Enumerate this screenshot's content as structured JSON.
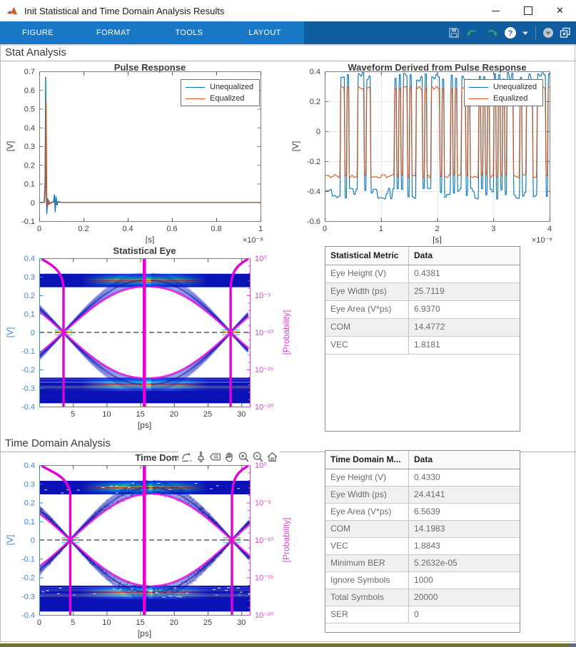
{
  "window": {
    "title": "Init Statistical and Time Domain Analysis Results"
  },
  "titlebar_controls": {
    "minimize": "minimize",
    "maximize": "maximize",
    "close": "✕"
  },
  "ribbon": {
    "tabs": [
      {
        "label": "FIGURE"
      },
      {
        "label": "FORMAT"
      },
      {
        "label": "TOOLS"
      },
      {
        "label": "LAYOUT"
      }
    ],
    "quick_access_icons": [
      "save",
      "undo",
      "redo",
      "help",
      "help-dropdown",
      "toolstrip-options",
      "dock-figure"
    ]
  },
  "sections": {
    "stat_title": "Stat Analysis",
    "time_domain_title": "Time Domain Analysis"
  },
  "axes_toolbar_icons": [
    "export",
    "brush",
    "datatips",
    "pan",
    "zoom-in",
    "zoom-out",
    "restore-view"
  ],
  "tables": {
    "stat": {
      "headers": [
        "Statistical Metric",
        "Data"
      ],
      "rows": [
        [
          "Eye Height (V)",
          "0.4381"
        ],
        [
          "Eye Width (ps)",
          "25.7119"
        ],
        [
          "Eye Area (V*ps)",
          "6.9370"
        ],
        [
          "COM",
          "14.4772"
        ],
        [
          "VEC",
          "1.8181"
        ]
      ]
    },
    "time_domain": {
      "headers": [
        "Time Domain M...",
        "Data"
      ],
      "rows": [
        [
          "Eye Height (V)",
          "0.4330"
        ],
        [
          "Eye Width (ps)",
          "24.4141"
        ],
        [
          "Eye Area (V*ps)",
          "6.5639"
        ],
        [
          "COM",
          "14.1983"
        ],
        [
          "VEC",
          "1.8843"
        ],
        [
          "Minimum BER",
          "5.2632e-05"
        ],
        [
          "Ignore Symbols",
          "1000"
        ],
        [
          "Total Symbols",
          "20000"
        ],
        [
          "SER",
          "0"
        ]
      ]
    }
  },
  "chart_data": [
    {
      "id": "pulse",
      "type": "line",
      "title": "Pulse Response",
      "xlabel": "[s]",
      "ylabel": "[V]",
      "x_exponent_label": "×10⁻⁸",
      "xlim": [
        0,
        1
      ],
      "ylim": [
        -0.1,
        0.7
      ],
      "xticks": [
        0,
        0.2,
        0.4,
        0.6,
        0.8,
        1
      ],
      "yticks": [
        -0.1,
        0,
        0.1,
        0.2,
        0.3,
        0.4,
        0.5,
        0.6,
        0.7
      ],
      "legend": [
        "Unequalized",
        "Equalized"
      ],
      "series": [
        {
          "name": "Unequalized",
          "color": "#0072BD",
          "peak_v": 0.67,
          "peak_t": 0.029,
          "points": [
            [
              0,
              0
            ],
            [
              0.022,
              0
            ],
            [
              0.026,
              0.1
            ],
            [
              0.029,
              0.67
            ],
            [
              0.032,
              0.05
            ],
            [
              0.034,
              -0.06
            ],
            [
              0.038,
              0.02
            ],
            [
              0.045,
              -0.01
            ],
            [
              0.055,
              0
            ],
            [
              0.065,
              0.005
            ],
            [
              0.069,
              0.042
            ],
            [
              0.072,
              -0.05
            ],
            [
              0.076,
              0.03
            ],
            [
              0.08,
              -0.015
            ],
            [
              0.085,
              0.005
            ],
            [
              0.1,
              0
            ],
            [
              1,
              0
            ]
          ]
        },
        {
          "name": "Equalized",
          "color": "#D95319",
          "peak_v": 0.54,
          "peak_t": 0.031,
          "points": [
            [
              0,
              0
            ],
            [
              0.024,
              0
            ],
            [
              0.028,
              0.08
            ],
            [
              0.031,
              0.54
            ],
            [
              0.034,
              0.04
            ],
            [
              0.037,
              -0.025
            ],
            [
              0.042,
              0.01
            ],
            [
              0.05,
              -0.005
            ],
            [
              0.06,
              0
            ],
            [
              1,
              0
            ]
          ]
        }
      ]
    },
    {
      "id": "waveform",
      "type": "line",
      "title": "Waveform Derived from Pulse Response",
      "xlabel": "[s]",
      "ylabel": "[V]",
      "x_exponent_label": "×10⁻⁹",
      "xlim": [
        0,
        4
      ],
      "ylim": [
        -0.6,
        0.4
      ],
      "xticks": [
        0,
        1,
        2,
        3,
        4
      ],
      "yticks": [
        -0.6,
        -0.4,
        -0.2,
        0,
        0.2,
        0.4
      ],
      "grid": true,
      "legend": [
        "Unequalized",
        "Equalized"
      ],
      "generator": {
        "kind": "pseudo-random-NRZ",
        "note": "dense random bit waveform; exact bit sequence not resolvable from screenshot",
        "seed": 97,
        "n_bits": 104,
        "series": [
          {
            "name": "Unequalized",
            "color": "#0072BD",
            "high": 0.365,
            "low": -0.415,
            "jitter": 0.18
          },
          {
            "name": "Equalized",
            "color": "#D95319",
            "high": 0.29,
            "low": -0.3,
            "jitter": 0.07
          }
        ]
      }
    },
    {
      "id": "stat_eye",
      "type": "heatmap-eye",
      "title": "Statistical Eye",
      "xlabel": "[ps]",
      "ylabel_left": "[V]",
      "ylabel_right": "[Probability]",
      "xlim": [
        0,
        31.25
      ],
      "ylim": [
        -0.4,
        0.4
      ],
      "xticks": [
        5,
        10,
        15,
        20,
        25,
        30
      ],
      "yticks_left": [
        -0.4,
        -0.3,
        -0.2,
        -0.1,
        0,
        0.1,
        0.2,
        0.3,
        0.4
      ],
      "yticks_right": [
        "10⁰",
        "10⁻⁵",
        "10⁻¹⁰",
        "10⁻¹⁵",
        "10⁻²⁰"
      ],
      "signal_level_v": 0.28,
      "band_halfwidth_v": 0.034,
      "contour_level_v": 0.245,
      "crossings_ps": [
        3.6,
        28.4
      ],
      "sampling_ps": 15.6,
      "zero_line_dashed": true,
      "noise_scatter": false,
      "colors": {
        "density": "#0a12b6",
        "contour": "#ff14e6",
        "bathtub": "#e400d6",
        "left_axis": "#3c86d2",
        "right_axis": "#df3fd3"
      }
    },
    {
      "id": "td_eye",
      "type": "heatmap-eye",
      "title": "Time Dom",
      "xlabel": "[ps]",
      "ylabel_left": "[V]",
      "ylabel_right": "[Probability]",
      "xlim": [
        0,
        31.25
      ],
      "ylim": [
        -0.4,
        0.4
      ],
      "xticks": [
        0,
        5,
        10,
        15,
        20,
        25,
        30
      ],
      "yticks_left": [
        -0.4,
        -0.3,
        -0.2,
        -0.1,
        0,
        0.1,
        0.2,
        0.3,
        0.4
      ],
      "yticks_right": [
        "10⁰",
        "10⁻⁵",
        "10⁻¹⁰",
        "10⁻¹⁵",
        "10⁻²⁰"
      ],
      "signal_level_v": 0.28,
      "band_halfwidth_v": 0.034,
      "contour_level_v": 0.245,
      "crossings_ps": [
        4.6,
        28.6
      ],
      "sampling_ps": 15.6,
      "zero_line_dashed": true,
      "noise_scatter": true,
      "colors": {
        "density": "#0a12b6",
        "contour": "#ff14e6",
        "bathtub": "#e400d6",
        "left_axis": "#3c86d2",
        "right_axis": "#df3fd3"
      }
    }
  ]
}
